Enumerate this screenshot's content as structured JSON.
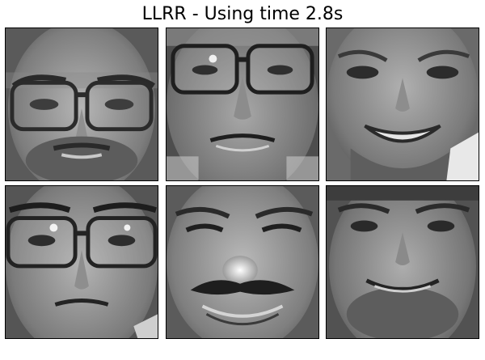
{
  "figure": {
    "title": "LLRR - Using time 2.8s"
  },
  "faces": [
    {
      "description": "grayscale-face",
      "glasses": true,
      "beard": true,
      "expression": "neutral"
    },
    {
      "description": "grayscale-face",
      "glasses": true,
      "beard": false,
      "expression": "neutral"
    },
    {
      "description": "grayscale-face",
      "glasses": false,
      "beard": false,
      "expression": "smiling"
    },
    {
      "description": "grayscale-face",
      "glasses": true,
      "beard": false,
      "expression": "neutral"
    },
    {
      "description": "grayscale-face",
      "glasses": false,
      "beard": false,
      "expression": "smiling-mustache"
    },
    {
      "description": "grayscale-face",
      "glasses": false,
      "beard": true,
      "expression": "smiling"
    }
  ],
  "colors": {
    "background": "#ffffff",
    "frame": "#000000"
  }
}
